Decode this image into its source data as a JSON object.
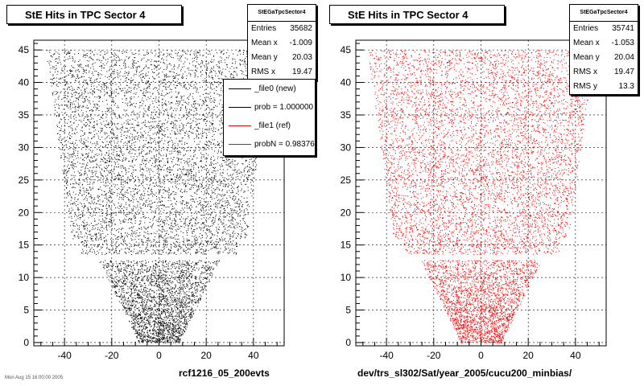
{
  "panels": [
    {
      "title": "StE Hits in TPC Sector 4",
      "caption": "rcf1216_05_200evts",
      "color": "#000000",
      "stats": {
        "name": "StEGaTpcSector4",
        "rows": [
          {
            "label": "Entries",
            "value": "35682"
          },
          {
            "label": "Mean x",
            "value": "-1.009"
          },
          {
            "label": "Mean y",
            "value": "20.03"
          },
          {
            "label": "RMS x",
            "value": "19.47"
          }
        ]
      },
      "legend": [
        {
          "label": "_file0 (new)",
          "color": "#000000"
        },
        {
          "label": "prob = 1.000000",
          "color": "#000000"
        },
        {
          "label": "_file1 (ref)",
          "color": "#ff0000"
        },
        {
          "label": "probN = 0.983766",
          "color": "#ff0000"
        }
      ]
    },
    {
      "title": "StE Hits in TPC Sector 4",
      "caption": "dev/trs_sl302/Sat/year_2005/cucu200_minbias/",
      "color": "#ff0000",
      "stats": {
        "name": "StEGaTpcSector4",
        "rows": [
          {
            "label": "Entries",
            "value": "35741"
          },
          {
            "label": "Mean x",
            "value": "-1.053"
          },
          {
            "label": "Mean y",
            "value": "20.04"
          },
          {
            "label": "RMS x",
            "value": "19.47"
          },
          {
            "label": "RMS y",
            "value": "13.3"
          }
        ]
      }
    }
  ],
  "footer_stamp": "Mon Aug 15 16:00:00 2005",
  "chart_data": [
    {
      "type": "scatter",
      "title": "StE Hits in TPC Sector 4",
      "xlabel": "rcf1216_05_200evts",
      "ylabel": "",
      "xlim": [
        -53,
        53
      ],
      "ylim": [
        -0.5,
        46.5
      ],
      "x_ticks": [
        -40,
        -20,
        0,
        20,
        40
      ],
      "y_ticks": [
        0,
        5,
        10,
        15,
        20,
        25,
        30,
        35,
        40,
        45
      ],
      "grid": true,
      "series": [
        {
          "color": "#000000",
          "entries": 35682,
          "mean_x": -1.009,
          "mean_y": 20.03,
          "rms_x": 19.47
        }
      ],
      "hit_band_ranges": [
        {
          "y": [
            0,
            13
          ],
          "x": [
            -26,
            26
          ]
        },
        {
          "y": [
            13,
            16
          ],
          "x": [
            -33,
            33
          ]
        },
        {
          "y": [
            16,
            45
          ],
          "x": [
            -48,
            48
          ]
        }
      ]
    },
    {
      "type": "scatter",
      "title": "StE Hits in TPC Sector 4",
      "xlabel": "dev/trs_sl302/Sat/year_2005/cucu200_minbias/",
      "ylabel": "",
      "xlim": [
        -53,
        53
      ],
      "ylim": [
        -0.5,
        46.5
      ],
      "x_ticks": [
        -40,
        -20,
        0,
        20,
        40
      ],
      "y_ticks": [
        0,
        5,
        10,
        15,
        20,
        25,
        30,
        35,
        40,
        45
      ],
      "grid": true,
      "series": [
        {
          "color": "#ff0000",
          "entries": 35741,
          "mean_x": -1.053,
          "mean_y": 20.04,
          "rms_x": 19.47,
          "rms_y": 13.3
        }
      ],
      "hit_band_ranges": [
        {
          "y": [
            0,
            13
          ],
          "x": [
            -26,
            26
          ]
        },
        {
          "y": [
            13,
            16
          ],
          "x": [
            -33,
            33
          ]
        },
        {
          "y": [
            16,
            45
          ],
          "x": [
            -48,
            48
          ]
        }
      ]
    }
  ]
}
